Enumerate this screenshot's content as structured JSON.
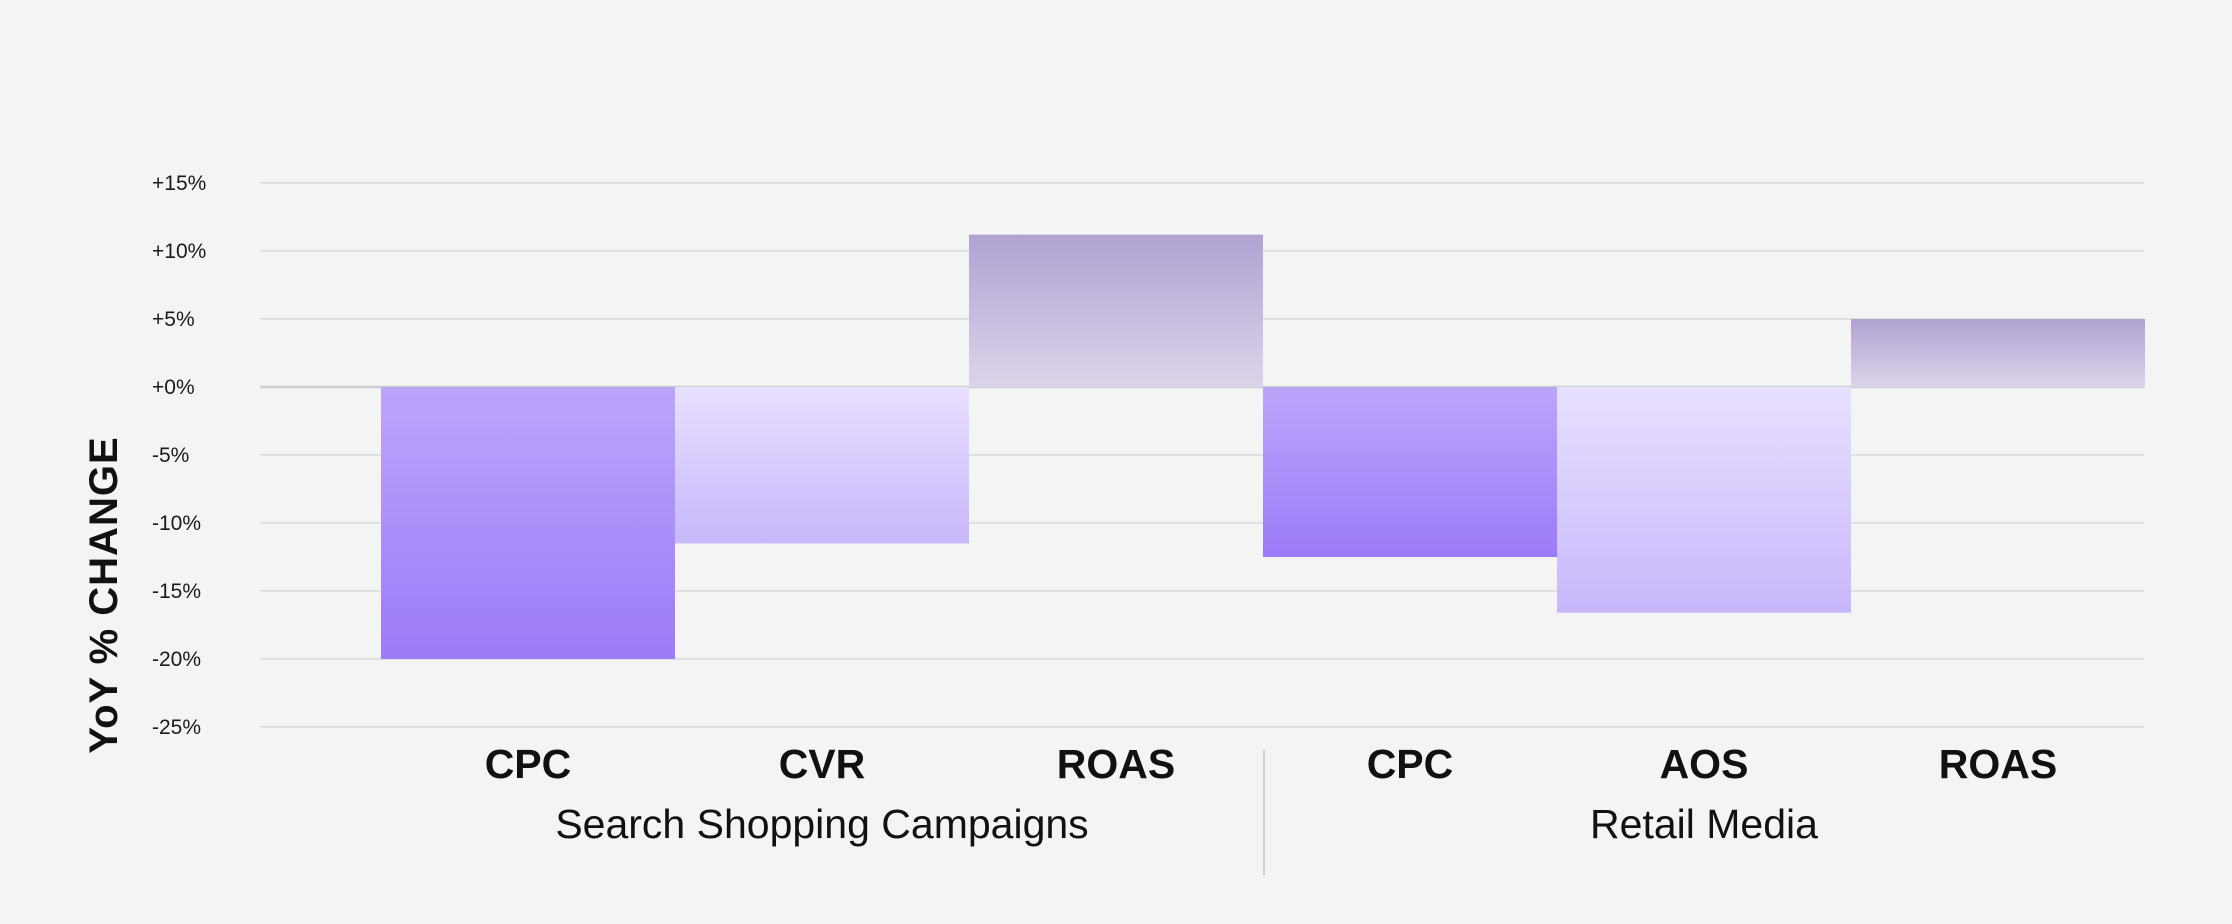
{
  "chart_data": {
    "type": "bar",
    "ylabel": "YoY % CHANGE",
    "ylim": [
      -25,
      15
    ],
    "yticks": [
      "+15%",
      "+10%",
      "+5%",
      "+0%",
      "-5%",
      "-10%",
      "-15%",
      "-20%",
      "-25%"
    ],
    "grid": true,
    "groups": [
      {
        "label": "Search Shopping Campaigns",
        "bars": [
          {
            "label": "CPC",
            "value": -20,
            "color_top": "#bba6fb",
            "color_bottom": "#9b7bf8"
          },
          {
            "label": "CVR",
            "value": -11.5,
            "color_top": "#e8e0ff",
            "color_bottom": "#c8b7fb"
          },
          {
            "label": "ROAS",
            "value": 11.2,
            "color_top": "#b0a2d2",
            "color_bottom": "#dcd4ea"
          }
        ]
      },
      {
        "label": "Retail Media",
        "bars": [
          {
            "label": "CPC",
            "value": -12.5,
            "color_top": "#bba6fb",
            "color_bottom": "#9b7bf8"
          },
          {
            "label": "AOS",
            "value": -16.6,
            "color_top": "#e8e0ff",
            "color_bottom": "#c8b7fb"
          },
          {
            "label": "ROAS",
            "value": 5,
            "color_top": "#b0a2d2",
            "color_bottom": "#dcd4ea"
          }
        ]
      }
    ]
  }
}
